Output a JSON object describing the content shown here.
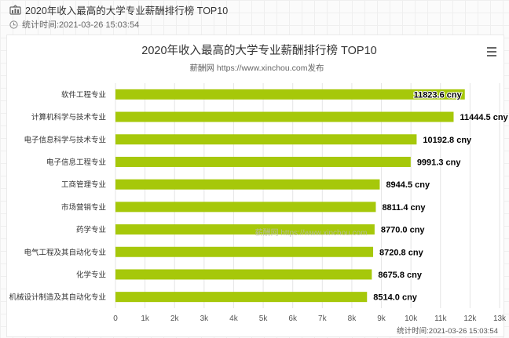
{
  "header": {
    "icon": "chart-icon",
    "title": "2020年收入最高的大学专业薪酬排行榜 TOP10",
    "clock_icon": "clock-icon",
    "time": "统计时间:2021-03-26 15:03:54"
  },
  "menu": {
    "icon": "hamburger-icon"
  },
  "colors": {
    "bar": "#a6c80a",
    "grid": "#e6e6e6",
    "text": "#333333",
    "axis": "#cccccc"
  },
  "chart_data": {
    "type": "bar",
    "orientation": "horizontal",
    "title": "2020年收入最高的大学专业薪酬排行榜 TOP10",
    "subtitle": "薪酬网 https://www.xinchou.com发布",
    "categories": [
      "软件工程专业",
      "计算机科学与技术专业",
      "电子信息科学与技术专业",
      "电子信息工程专业",
      "工商管理专业",
      "市场营销专业",
      "药学专业",
      "电气工程及其自动化专业",
      "化学专业",
      "机械设计制造及其自动化专业"
    ],
    "values": [
      11823.6,
      11444.5,
      10192.8,
      9991.3,
      8944.5,
      8811.4,
      8770.0,
      8720.8,
      8675.8,
      8514.0
    ],
    "data_labels": [
      "11823.6 cny",
      "11444.5 cny",
      "10192.8 cny",
      "9991.3 cny",
      "8944.5 cny",
      "8811.4 cny",
      "8770.0 cny",
      "8720.8 cny",
      "8675.8 cny",
      "8514.0 cny"
    ],
    "xlim": [
      0,
      13000
    ],
    "ticks": [
      0,
      1000,
      2000,
      3000,
      4000,
      5000,
      6000,
      7000,
      8000,
      9000,
      10000,
      11000,
      12000,
      13000
    ],
    "tick_labels": [
      "0",
      "1k",
      "2k",
      "3k",
      "4k",
      "5k",
      "6k",
      "7k",
      "8k",
      "9k",
      "10k",
      "11k",
      "12k",
      "13k"
    ],
    "watermark": "薪酬网 https://www.xinchou.com",
    "credit": "统计时间:2021-03-26 15:03:54",
    "grid": true,
    "legend": "none"
  }
}
